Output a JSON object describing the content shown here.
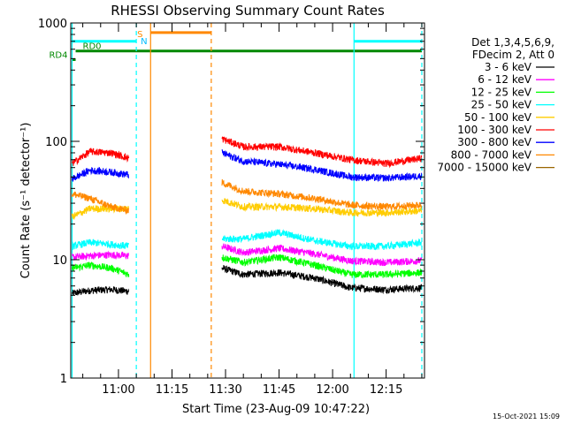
{
  "footer": {
    "date_stamp": "15-Oct-2021 15:09"
  },
  "chart_data": {
    "type": "line",
    "title": "RHESSI Observing Summary Count Rates",
    "xlabel": "Start Time (23-Aug-09 10:47:22)",
    "ylabel": "Count Rate (s⁻¹ detector⁻¹)",
    "x_unit": "minutes of day",
    "xlim": [
      "10:47",
      "12:25"
    ],
    "x_ticks": [
      "11:00",
      "11:15",
      "11:30",
      "11:45",
      "12:00",
      "12:15"
    ],
    "y_scale": "log",
    "ylim": [
      1,
      1000
    ],
    "y_ticks": [
      "1",
      "10",
      "100",
      "1000"
    ],
    "grid": false,
    "legend_placement": "right",
    "legend_header": [
      "Det 1,3,4,5,6,9,",
      "FDecim 2, Att 0"
    ],
    "gaps": [
      [
        "11:03",
        "11:29"
      ]
    ],
    "series": [
      {
        "name": "3 - 6 keV",
        "color": "#000000",
        "values": [
          [
            "10:47",
            5.2
          ],
          [
            "10:52",
            5.5
          ],
          [
            "10:58",
            5.6
          ],
          [
            "11:03",
            5.4
          ],
          [
            "11:29",
            8.5
          ],
          [
            "11:35",
            7.5
          ],
          [
            "11:45",
            7.8
          ],
          [
            "11:55",
            7.0
          ],
          [
            "12:05",
            5.8
          ],
          [
            "12:15",
            5.6
          ],
          [
            "12:25",
            5.8
          ]
        ]
      },
      {
        "name": "6 - 12 keV",
        "color": "#ff00ff",
        "values": [
          [
            "10:47",
            10.5
          ],
          [
            "10:52",
            10.8
          ],
          [
            "10:58",
            11.0
          ],
          [
            "11:03",
            10.8
          ],
          [
            "11:29",
            13
          ],
          [
            "11:35",
            11.5
          ],
          [
            "11:45",
            12.5
          ],
          [
            "11:55",
            11.2
          ],
          [
            "12:05",
            9.8
          ],
          [
            "12:15",
            9.5
          ],
          [
            "12:25",
            9.8
          ]
        ]
      },
      {
        "name": "12 - 25 keV",
        "color": "#00ff00",
        "values": [
          [
            "10:47",
            8.5
          ],
          [
            "10:52",
            9
          ],
          [
            "10:58",
            8.5
          ],
          [
            "11:03",
            7.5
          ],
          [
            "11:29",
            10.5
          ],
          [
            "11:35",
            9.5
          ],
          [
            "11:45",
            10.5
          ],
          [
            "11:55",
            9
          ],
          [
            "12:05",
            7.5
          ],
          [
            "12:15",
            7.5
          ],
          [
            "12:25",
            7.8
          ]
        ]
      },
      {
        "name": "25 - 50 keV",
        "color": "#00ffff",
        "values": [
          [
            "10:47",
            13
          ],
          [
            "10:52",
            14
          ],
          [
            "10:58",
            13.5
          ],
          [
            "11:03",
            13
          ],
          [
            "11:29",
            15
          ],
          [
            "11:35",
            15
          ],
          [
            "11:45",
            17
          ],
          [
            "11:55",
            14.5
          ],
          [
            "12:05",
            13
          ],
          [
            "12:15",
            13
          ],
          [
            "12:25",
            14
          ]
        ]
      },
      {
        "name": "50 - 100 keV",
        "color": "#ffcc00",
        "values": [
          [
            "10:47",
            23
          ],
          [
            "10:52",
            27
          ],
          [
            "10:58",
            27
          ],
          [
            "11:03",
            27
          ],
          [
            "11:29",
            32
          ],
          [
            "11:35",
            28
          ],
          [
            "11:45",
            28
          ],
          [
            "11:55",
            27
          ],
          [
            "12:05",
            25
          ],
          [
            "12:15",
            25
          ],
          [
            "12:25",
            26
          ]
        ]
      },
      {
        "name": "100 - 300 keV",
        "color": "#ff0000",
        "values": [
          [
            "10:47",
            65
          ],
          [
            "10:52",
            82
          ],
          [
            "10:58",
            80
          ],
          [
            "11:03",
            72
          ],
          [
            "11:29",
            105
          ],
          [
            "11:35",
            90
          ],
          [
            "11:45",
            90
          ],
          [
            "11:55",
            80
          ],
          [
            "12:05",
            70
          ],
          [
            "12:15",
            65
          ],
          [
            "12:25",
            72
          ]
        ]
      },
      {
        "name": "300 - 800 keV",
        "color": "#0000ff",
        "values": [
          [
            "10:47",
            48
          ],
          [
            "10:52",
            57
          ],
          [
            "10:58",
            55
          ],
          [
            "11:03",
            52
          ],
          [
            "11:29",
            80
          ],
          [
            "11:35",
            68
          ],
          [
            "11:45",
            64
          ],
          [
            "11:55",
            58
          ],
          [
            "12:05",
            50
          ],
          [
            "12:15",
            49
          ],
          [
            "12:25",
            51
          ]
        ]
      },
      {
        "name": "800 - 7000 keV",
        "color": "#ff8800",
        "values": [
          [
            "10:47",
            36
          ],
          [
            "10:52",
            33
          ],
          [
            "10:58",
            28
          ],
          [
            "11:03",
            26
          ],
          [
            "11:29",
            45
          ],
          [
            "11:35",
            38
          ],
          [
            "11:45",
            36
          ],
          [
            "11:55",
            33
          ],
          [
            "12:05",
            29
          ],
          [
            "12:15",
            28
          ],
          [
            "12:25",
            29
          ]
        ]
      },
      {
        "name": "7000 - 15000 keV",
        "color": "#996600",
        "values": []
      }
    ],
    "vertical_markers": [
      {
        "time": "10:47",
        "color": "#00ffff",
        "style": "solid"
      },
      {
        "time": "11:05",
        "color": "#00ffff",
        "style": "dashed"
      },
      {
        "time": "11:09",
        "color": "#ff8800",
        "style": "solid"
      },
      {
        "time": "11:26",
        "color": "#ff8800",
        "style": "dashed"
      },
      {
        "time": "12:06",
        "color": "#00ffff",
        "style": "solid"
      },
      {
        "time": "12:25",
        "color": "#00ffff",
        "style": "dashed"
      }
    ],
    "status_bars": [
      {
        "label": "",
        "color": "#00ffff",
        "y": 700,
        "from": "10:47",
        "to": "11:05"
      },
      {
        "label": "",
        "color": "#00ffff",
        "y": 700,
        "from": "12:06",
        "to": "12:25"
      },
      {
        "label": "",
        "color": "#ff8800",
        "y": 830,
        "from": "11:09",
        "to": "11:26"
      },
      {
        "label": "RD4",
        "color": "#008800",
        "y": 490,
        "from": "10:47",
        "to": "10:48"
      },
      {
        "label": "RD0",
        "color": "#008800",
        "y": 580,
        "from": "10:48",
        "to": "12:25"
      }
    ],
    "annotations": [
      {
        "text": "S",
        "color": "#ff8800"
      },
      {
        "text": "N",
        "color": "#00bbff"
      }
    ]
  }
}
